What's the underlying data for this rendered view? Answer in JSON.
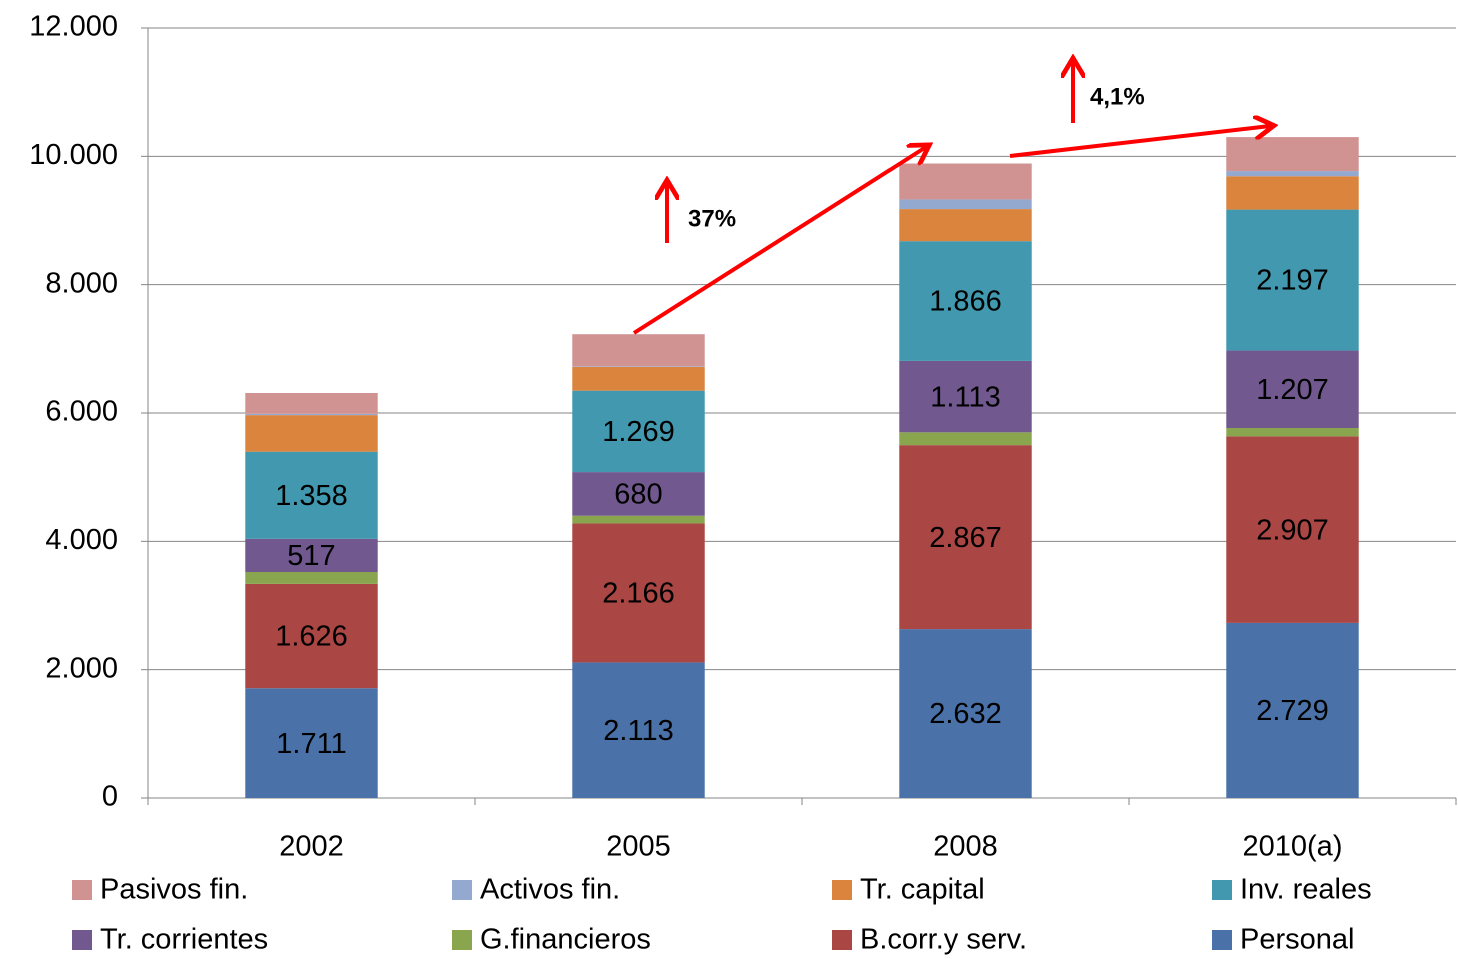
{
  "chart_data": {
    "type": "stacked-bar",
    "categories": [
      "2002",
      "2005",
      "2008",
      "2010(a)"
    ],
    "series": [
      {
        "name": "Personal",
        "color": "#4a72a8",
        "values": [
          1711,
          2113,
          2632,
          2729
        ],
        "value_labels": [
          "1.711",
          "2.113",
          "2.632",
          "2.729"
        ]
      },
      {
        "name": "B.corr.y serv.",
        "color": "#aa4643",
        "values": [
          1626,
          2166,
          2867,
          2907
        ],
        "value_labels": [
          "1.626",
          "2.166",
          "2.867",
          "2.907"
        ]
      },
      {
        "name": "G.financieros",
        "color": "#89a54e",
        "values": [
          185,
          120,
          200,
          130
        ],
        "value_labels": [
          null,
          null,
          null,
          null
        ]
      },
      {
        "name": "Tr. corrientes",
        "color": "#71588f",
        "values": [
          517,
          680,
          1113,
          1207
        ],
        "value_labels": [
          "517",
          "680",
          "1.113",
          "1.207"
        ]
      },
      {
        "name": "Inv. reales",
        "color": "#4198af",
        "values": [
          1358,
          1269,
          1866,
          2197
        ],
        "value_labels": [
          "1.358",
          "1.269",
          "1.866",
          "2.197"
        ]
      },
      {
        "name": "Tr. capital",
        "color": "#db843d",
        "values": [
          570,
          370,
          500,
          520
        ],
        "value_labels": [
          null,
          null,
          null,
          null
        ]
      },
      {
        "name": "Activos fin.",
        "color": "#93a9cf",
        "values": [
          20,
          10,
          150,
          80
        ],
        "value_labels": [
          null,
          null,
          null,
          null
        ]
      },
      {
        "name": "Pasivos fin.",
        "color": "#d19392",
        "values": [
          325,
          500,
          560,
          530
        ],
        "value_labels": [
          null,
          null,
          null,
          null
        ]
      }
    ],
    "ylim": [
      0,
      12000
    ],
    "yticks": [
      0,
      {
        "value": 2000,
        "label": "2.000"
      },
      {
        "value": 4000,
        "label": "4.000"
      },
      {
        "value": 6000,
        "label": "6.000"
      },
      {
        "value": 8000,
        "label": "8.000"
      },
      {
        "value": 10000,
        "label": "10.000"
      },
      {
        "value": 12000,
        "label": "12.000"
      }
    ],
    "grid": true,
    "annotations": [
      "37%",
      "4,1%"
    ]
  }
}
